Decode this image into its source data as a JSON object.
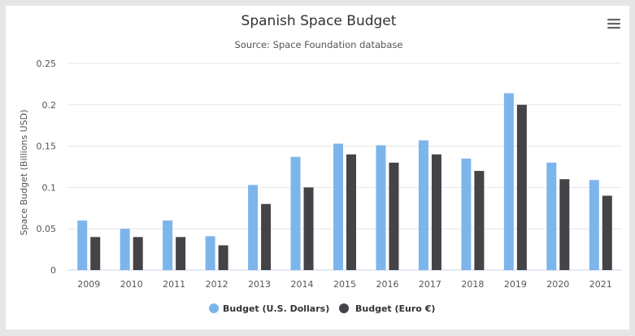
{
  "chart_data": {
    "type": "bar",
    "title": "Spanish Space Budget",
    "subtitle": "Source: Space Foundation database",
    "ylabel": "Space Budget (Billions USD)",
    "xlabel": "",
    "ylim": [
      0,
      0.25
    ],
    "yticks": [
      "0",
      "0.05",
      "0.1",
      "0.15",
      "0.2",
      "0.25"
    ],
    "grid": true,
    "legend_position": "bottom-center",
    "categories": [
      "2009",
      "2010",
      "2011",
      "2012",
      "2013",
      "2014",
      "2015",
      "2016",
      "2017",
      "2018",
      "2019",
      "2020",
      "2021"
    ],
    "series": [
      {
        "name": "Budget (U.S. Dollars)",
        "color": "#7cb5ec",
        "values": [
          0.06,
          0.05,
          0.06,
          0.041,
          0.103,
          0.137,
          0.153,
          0.151,
          0.157,
          0.135,
          0.214,
          0.13,
          0.109
        ]
      },
      {
        "name": "Budget (Euro €)",
        "color": "#434348",
        "values": [
          0.04,
          0.04,
          0.04,
          0.03,
          0.08,
          0.1,
          0.14,
          0.13,
          0.14,
          0.12,
          0.2,
          0.11,
          0.09
        ]
      }
    ]
  },
  "toolbar": {
    "menu_icon": "hamburger-menu-icon"
  }
}
